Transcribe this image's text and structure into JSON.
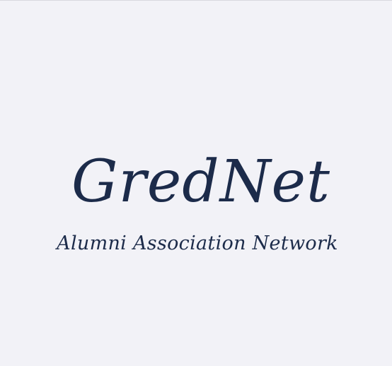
{
  "logo": {
    "brand_name": "GredNet",
    "tagline": "Alumni Association Network",
    "text_color": "#1c2b4a",
    "background_color": "#f2f2f7"
  }
}
